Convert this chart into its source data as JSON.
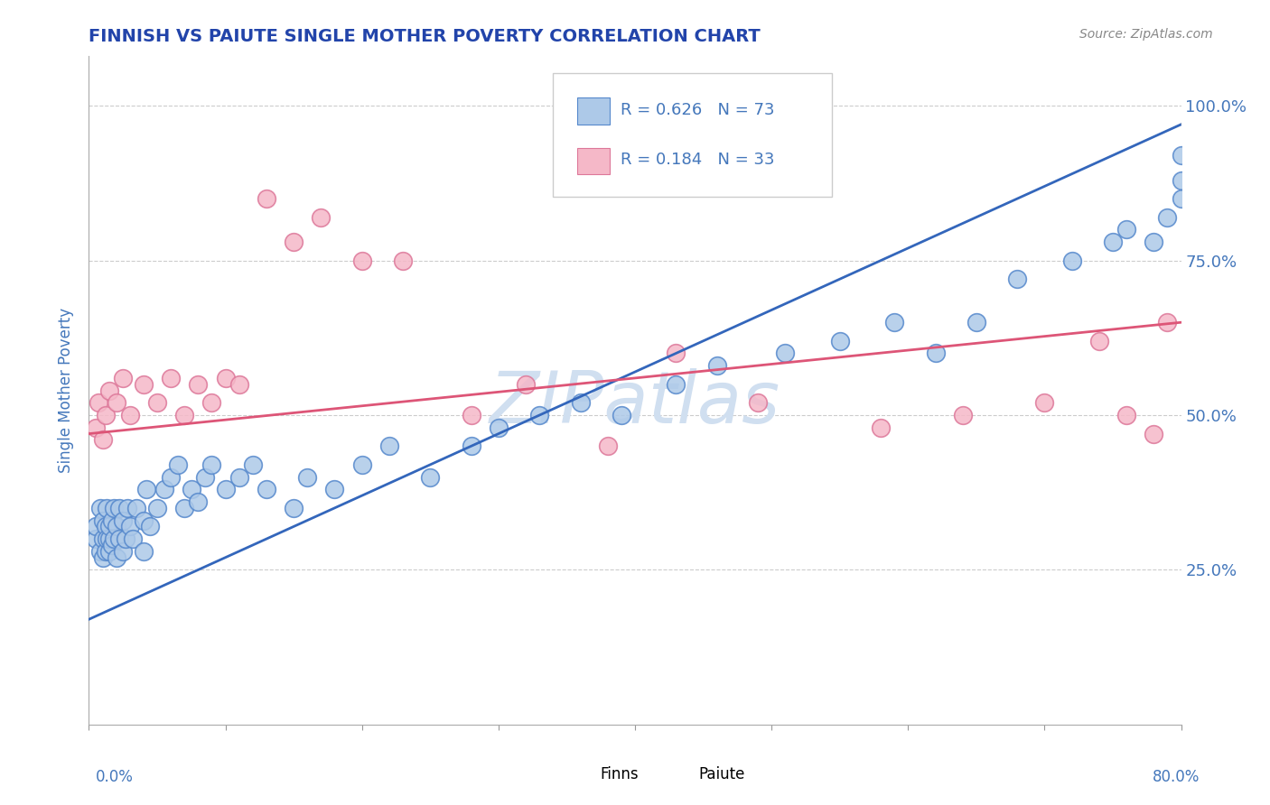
{
  "title": "FINNISH VS PAIUTE SINGLE MOTHER POVERTY CORRELATION CHART",
  "source": "Source: ZipAtlas.com",
  "ylabel": "Single Mother Poverty",
  "ytick_labels": [
    "25.0%",
    "50.0%",
    "75.0%",
    "100.0%"
  ],
  "legend1_R": "0.626",
  "legend1_N": "73",
  "legend2_R": "0.184",
  "legend2_N": "33",
  "legend1_label": "Finns",
  "legend2_label": "Paiute",
  "blue_color": "#adc9e8",
  "blue_edge": "#5588cc",
  "pink_color": "#f5b8c8",
  "pink_edge": "#dd7799",
  "blue_line_color": "#3366bb",
  "pink_line_color": "#dd5577",
  "watermark_color": "#d0dff0",
  "title_color": "#2244aa",
  "axis_color": "#4477bb",
  "finns_x": [
    0.005,
    0.005,
    0.008,
    0.008,
    0.01,
    0.01,
    0.01,
    0.012,
    0.012,
    0.013,
    0.013,
    0.015,
    0.015,
    0.015,
    0.017,
    0.017,
    0.018,
    0.018,
    0.02,
    0.02,
    0.022,
    0.022,
    0.025,
    0.025,
    0.027,
    0.028,
    0.03,
    0.032,
    0.035,
    0.04,
    0.04,
    0.042,
    0.045,
    0.05,
    0.055,
    0.06,
    0.065,
    0.07,
    0.075,
    0.08,
    0.085,
    0.09,
    0.1,
    0.11,
    0.12,
    0.13,
    0.15,
    0.16,
    0.18,
    0.2,
    0.22,
    0.25,
    0.28,
    0.3,
    0.33,
    0.36,
    0.39,
    0.43,
    0.46,
    0.51,
    0.55,
    0.59,
    0.62,
    0.65,
    0.68,
    0.72,
    0.75,
    0.76,
    0.78,
    0.79,
    0.8,
    0.8,
    0.8
  ],
  "finns_y": [
    0.3,
    0.32,
    0.28,
    0.35,
    0.27,
    0.3,
    0.33,
    0.28,
    0.32,
    0.3,
    0.35,
    0.28,
    0.3,
    0.32,
    0.29,
    0.33,
    0.3,
    0.35,
    0.27,
    0.32,
    0.3,
    0.35,
    0.28,
    0.33,
    0.3,
    0.35,
    0.32,
    0.3,
    0.35,
    0.28,
    0.33,
    0.38,
    0.32,
    0.35,
    0.38,
    0.4,
    0.42,
    0.35,
    0.38,
    0.36,
    0.4,
    0.42,
    0.38,
    0.4,
    0.42,
    0.38,
    0.35,
    0.4,
    0.38,
    0.42,
    0.45,
    0.4,
    0.45,
    0.48,
    0.5,
    0.52,
    0.5,
    0.55,
    0.58,
    0.6,
    0.62,
    0.65,
    0.6,
    0.65,
    0.72,
    0.75,
    0.78,
    0.8,
    0.78,
    0.82,
    0.85,
    0.88,
    0.92
  ],
  "paiute_x": [
    0.005,
    0.007,
    0.01,
    0.012,
    0.015,
    0.02,
    0.025,
    0.03,
    0.04,
    0.05,
    0.06,
    0.07,
    0.08,
    0.09,
    0.1,
    0.11,
    0.13,
    0.15,
    0.17,
    0.2,
    0.23,
    0.28,
    0.32,
    0.38,
    0.43,
    0.49,
    0.58,
    0.64,
    0.7,
    0.74,
    0.76,
    0.78,
    0.79
  ],
  "paiute_y": [
    0.48,
    0.52,
    0.46,
    0.5,
    0.54,
    0.52,
    0.56,
    0.5,
    0.55,
    0.52,
    0.56,
    0.5,
    0.55,
    0.52,
    0.56,
    0.55,
    0.85,
    0.78,
    0.82,
    0.75,
    0.75,
    0.5,
    0.55,
    0.45,
    0.6,
    0.52,
    0.48,
    0.5,
    0.52,
    0.62,
    0.5,
    0.47,
    0.65
  ],
  "xlim": [
    0.0,
    0.8
  ],
  "ylim": [
    0.0,
    1.08
  ],
  "blue_line_x0": 0.0,
  "blue_line_y0": 0.17,
  "blue_line_x1": 0.8,
  "blue_line_y1": 0.97,
  "pink_line_x0": 0.0,
  "pink_line_y0": 0.47,
  "pink_line_x1": 0.8,
  "pink_line_y1": 0.65
}
